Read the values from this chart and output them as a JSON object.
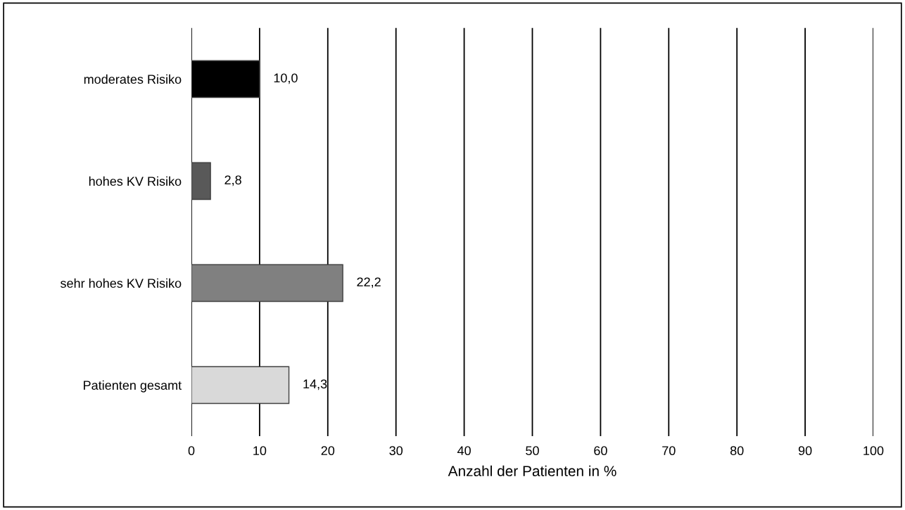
{
  "chart_data": {
    "type": "bar",
    "orientation": "horizontal",
    "categories": [
      "moderates Risiko",
      "hohes KV Risiko",
      "sehr hohes KV Risiko",
      "Patienten gesamt"
    ],
    "values": [
      10.0,
      2.8,
      22.2,
      14.3
    ],
    "value_labels": [
      "10,0",
      "2,8",
      "22,2",
      "14,3"
    ],
    "colors": [
      "#000000",
      "#595959",
      "#808080",
      "#d9d9d9"
    ],
    "xlabel": "Anzahl der Patienten in %",
    "xlim": [
      0,
      100
    ],
    "xticks": [
      0,
      10,
      20,
      30,
      40,
      50,
      60,
      70,
      80,
      90,
      100
    ],
    "grid": "x"
  }
}
